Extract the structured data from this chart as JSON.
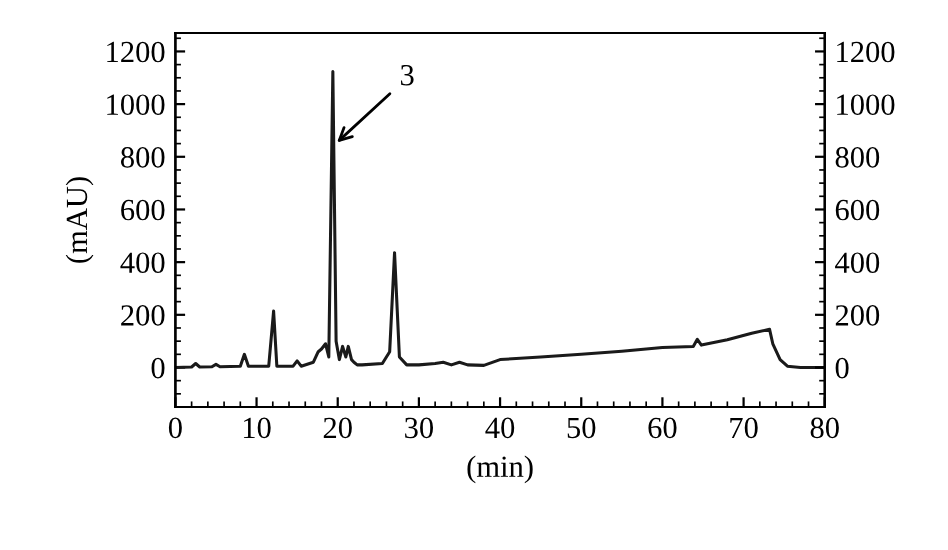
{
  "chart_data": {
    "type": "line",
    "xlabel": "(min)",
    "ylabel": "(mAU)",
    "x": [
      0,
      2,
      2.5,
      3,
      4.5,
      5,
      5.5,
      8,
      8.5,
      9,
      11.5,
      12.1,
      12.5,
      14.5,
      15,
      15.5,
      17,
      17.6,
      18,
      18.5,
      18.9,
      19.4,
      19.8,
      20.2,
      20.6,
      21,
      21.3,
      21.7,
      22,
      22.4,
      23,
      25.5,
      26.4,
      27,
      27.6,
      28.5,
      30,
      32,
      33,
      34,
      35,
      36,
      38,
      40,
      45,
      50,
      55,
      60,
      63.8,
      64.3,
      64.8,
      68,
      71,
      73.2,
      73.6,
      74.5,
      75.4,
      77,
      80
    ],
    "series": [
      {
        "color": "#1a1a1a",
        "values": [
          0,
          2,
          15,
          2,
          3,
          12,
          3,
          5,
          50,
          5,
          5,
          214,
          5,
          5,
          25,
          5,
          20,
          60,
          70,
          90,
          40,
          1124,
          100,
          30,
          80,
          40,
          80,
          30,
          20,
          10,
          10,
          15,
          60,
          436,
          40,
          10,
          10,
          15,
          20,
          10,
          20,
          10,
          8,
          30,
          40,
          50,
          62,
          76,
          80,
          107,
          85,
          105,
          130,
          145,
          90,
          30,
          5,
          0,
          0
        ]
      }
    ],
    "xlim": [
      0,
      80
    ],
    "ylim": [
      -150,
      1270
    ],
    "xticks": [
      0,
      10,
      20,
      30,
      40,
      50,
      60,
      70,
      80
    ],
    "yticks": [
      0,
      200,
      400,
      600,
      800,
      1000,
      1200
    ],
    "y2lim": [
      -150,
      1270
    ],
    "y2ticks": [
      0,
      200,
      400,
      600,
      800,
      1000,
      1200
    ],
    "annotations": [
      {
        "text": "3",
        "x": 19.4,
        "y": 840
      }
    ],
    "grid": false,
    "legend": false
  }
}
